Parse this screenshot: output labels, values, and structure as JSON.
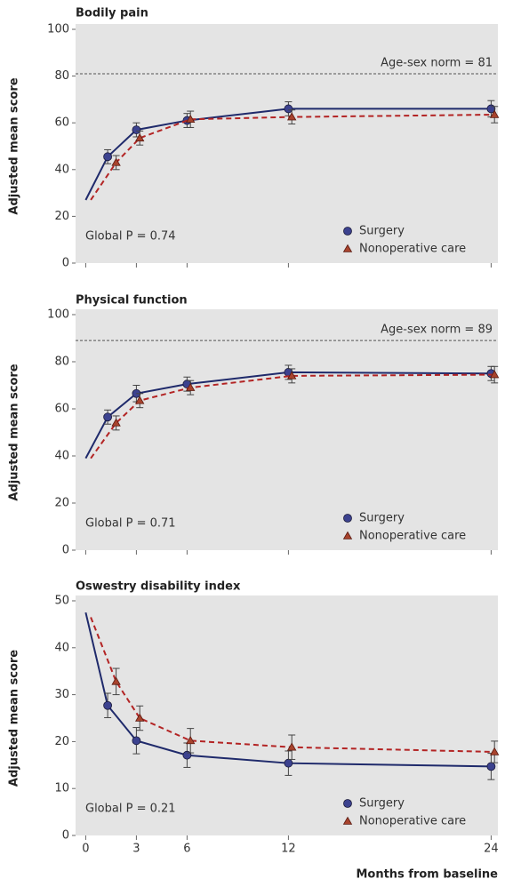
{
  "chart_data": [
    {
      "type": "line",
      "title": "Bodily pain",
      "ylabel": "Adjusted mean score",
      "annotation": "Global P = 0.74",
      "reference": {
        "value": 81,
        "label": "Age-sex norm = 81"
      },
      "xlim": [
        -0.6,
        24.4
      ],
      "ylim": [
        0,
        100
      ],
      "yticks": [
        0,
        20,
        40,
        60,
        80,
        100
      ],
      "series": [
        {
          "name": "Surgery",
          "color": "#1f2a6b",
          "marker": "circle",
          "dash": false,
          "x": [
            0,
            1.3,
            3,
            6,
            12,
            24
          ],
          "values": [
            27,
            45.5,
            57,
            61,
            66,
            66
          ],
          "errors": [
            null,
            3,
            3,
            3,
            3,
            3.5
          ]
        },
        {
          "name": "Nonoperative care",
          "color": "#b32424",
          "marker": "triangle",
          "dash": true,
          "x": [
            0.3,
            1.8,
            3.2,
            6.2,
            12.2,
            24.2
          ],
          "values": [
            27,
            43,
            53.5,
            61.5,
            62.5,
            63.5
          ],
          "errors": [
            null,
            3,
            3,
            3.5,
            3,
            3.5
          ]
        }
      ]
    },
    {
      "type": "line",
      "title": "Physical function",
      "ylabel": "Adjusted mean score",
      "annotation": "Global P = 0.71",
      "reference": {
        "value": 89,
        "label": "Age-sex norm = 89"
      },
      "xlim": [
        -0.6,
        24.4
      ],
      "ylim": [
        0,
        100
      ],
      "yticks": [
        0,
        20,
        40,
        60,
        80,
        100
      ],
      "series": [
        {
          "name": "Surgery",
          "color": "#1f2a6b",
          "marker": "circle",
          "dash": false,
          "x": [
            0,
            1.3,
            3,
            6,
            12,
            24
          ],
          "values": [
            39,
            56.5,
            66.5,
            70.5,
            75.5,
            75
          ],
          "errors": [
            null,
            3,
            3.5,
            3,
            3,
            3
          ]
        },
        {
          "name": "Nonoperative care",
          "color": "#b32424",
          "marker": "triangle",
          "dash": true,
          "x": [
            0.3,
            1.8,
            3.2,
            6.2,
            12.2,
            24.2
          ],
          "values": [
            39,
            54,
            63.5,
            69,
            74,
            74.5
          ],
          "errors": [
            null,
            3,
            3,
            3,
            3,
            3.5
          ]
        }
      ]
    },
    {
      "type": "line",
      "title": "Oswestry disability index",
      "ylabel": "Adjusted mean score",
      "xlabel": "Months from baseline",
      "annotation": "Global P = 0.21",
      "xlim": [
        -0.6,
        24.4
      ],
      "xticks": [
        0,
        3,
        6,
        12,
        24
      ],
      "ylim": [
        0,
        50
      ],
      "yticks": [
        0,
        10,
        20,
        30,
        40,
        50
      ],
      "series": [
        {
          "name": "Surgery",
          "color": "#1f2a6b",
          "marker": "circle",
          "dash": false,
          "x": [
            0,
            1.3,
            3,
            6,
            12,
            24
          ],
          "values": [
            47.5,
            27.7,
            20.2,
            17.1,
            15.4,
            14.7
          ],
          "errors": [
            null,
            2.6,
            2.8,
            2.6,
            2.6,
            2.8
          ]
        },
        {
          "name": "Nonoperative care",
          "color": "#b32424",
          "marker": "triangle",
          "dash": true,
          "x": [
            0.3,
            1.8,
            3.2,
            6.2,
            12.2,
            24.2
          ],
          "values": [
            46.5,
            32.8,
            25,
            20.2,
            18.8,
            17.8
          ],
          "errors": [
            null,
            2.8,
            2.6,
            2.6,
            2.6,
            2.3
          ]
        }
      ]
    }
  ]
}
